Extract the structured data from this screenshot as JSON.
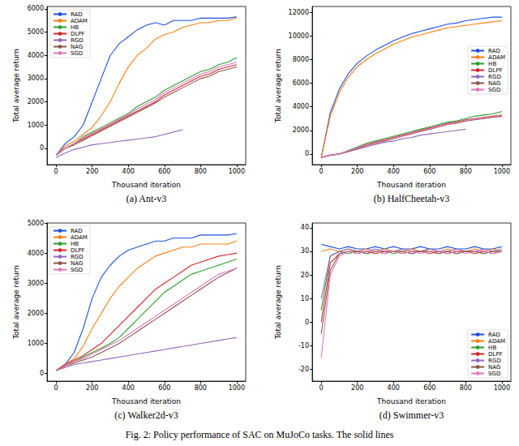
{
  "caption": "Fig. 2: Policy performance of SAC on MuJoCo tasks. The solid lines",
  "chart_data": [
    {
      "type": "line",
      "title": "(a) Ant-v3",
      "x_label": "Thousand iteration",
      "y_label": "Total average return",
      "x": [
        0,
        50,
        100,
        150,
        200,
        250,
        300,
        350,
        400,
        450,
        500,
        550,
        600,
        650,
        700,
        750,
        800,
        850,
        900,
        950,
        1000
      ],
      "xlim": [
        -50,
        1050
      ],
      "xticks": [
        0,
        200,
        400,
        600,
        800,
        1000
      ],
      "ylim": [
        -700,
        6100
      ],
      "yticks": [
        0,
        1000,
        2000,
        3000,
        4000,
        5000,
        6000
      ],
      "grid": false,
      "legend": "upper left",
      "series": [
        {
          "name": "RAD",
          "color": "#1f4fe0",
          "values": [
            -300,
            200,
            500,
            1000,
            2000,
            3000,
            4000,
            4500,
            4800,
            5100,
            5300,
            5400,
            5300,
            5500,
            5500,
            5500,
            5600,
            5600,
            5600,
            5600,
            5650
          ]
        },
        {
          "name": "ADAM",
          "color": "#ff7f0e",
          "values": [
            -300,
            100,
            300,
            600,
            900,
            1400,
            2000,
            2800,
            3500,
            4000,
            4300,
            4700,
            4900,
            5000,
            5200,
            5300,
            5400,
            5400,
            5500,
            5500,
            5600
          ]
        },
        {
          "name": "HB",
          "color": "#2ca02c",
          "values": [
            -300,
            0,
            200,
            500,
            700,
            900,
            1100,
            1300,
            1500,
            1800,
            2000,
            2200,
            2500,
            2700,
            2900,
            3100,
            3300,
            3400,
            3600,
            3700,
            3900
          ]
        },
        {
          "name": "DLPF",
          "color": "#d62728",
          "values": [
            -300,
            0,
            200,
            400,
            600,
            800,
            1000,
            1200,
            1400,
            1600,
            1800,
            2000,
            2300,
            2500,
            2700,
            2900,
            3100,
            3200,
            3400,
            3500,
            3600
          ]
        },
        {
          "name": "RGD",
          "color": "#9467bd",
          "values": [
            -400,
            -200,
            -50,
            50,
            150,
            200,
            250,
            300,
            350,
            400,
            450,
            500,
            600,
            700,
            800,
            null,
            null,
            null,
            null,
            null,
            null
          ]
        },
        {
          "name": "NAG",
          "color": "#8c564b",
          "values": [
            -300,
            0,
            150,
            350,
            550,
            750,
            950,
            1150,
            1350,
            1550,
            1750,
            1950,
            2200,
            2400,
            2600,
            2800,
            3000,
            3100,
            3300,
            3400,
            3500
          ]
        },
        {
          "name": "SGD",
          "color": "#e377c2",
          "values": [
            -300,
            0,
            200,
            450,
            650,
            850,
            1050,
            1250,
            1450,
            1700,
            1900,
            2100,
            2400,
            2600,
            2800,
            3000,
            3200,
            3300,
            3500,
            3600,
            3700
          ]
        }
      ]
    },
    {
      "type": "line",
      "title": "(b) HalfCheetah-v3",
      "x_label": "Thousand iteration",
      "y_label": "Total average return",
      "x": [
        0,
        50,
        100,
        150,
        200,
        250,
        300,
        350,
        400,
        450,
        500,
        550,
        600,
        650,
        700,
        750,
        800,
        850,
        900,
        950,
        1000
      ],
      "xlim": [
        -50,
        1050
      ],
      "xticks": [
        0,
        200,
        400,
        600,
        800,
        1000
      ],
      "ylim": [
        -900,
        12500
      ],
      "yticks": [
        0,
        2000,
        4000,
        6000,
        8000,
        10000,
        12000
      ],
      "grid": false,
      "legend": "right",
      "series": [
        {
          "name": "RAD",
          "color": "#1f4fe0",
          "values": [
            -300,
            3500,
            5500,
            6800,
            7700,
            8300,
            8800,
            9200,
            9600,
            9900,
            10200,
            10400,
            10600,
            10800,
            11000,
            11100,
            11300,
            11400,
            11500,
            11600,
            11600
          ]
        },
        {
          "name": "ADAM",
          "color": "#ff7f0e",
          "values": [
            -300,
            3200,
            5200,
            6500,
            7400,
            8000,
            8500,
            8900,
            9300,
            9600,
            9900,
            10100,
            10300,
            10500,
            10700,
            10800,
            10900,
            11000,
            11100,
            11200,
            11300
          ]
        },
        {
          "name": "HB",
          "color": "#2ca02c",
          "values": [
            -300,
            -100,
            0,
            300,
            600,
            900,
            1100,
            1300,
            1500,
            1700,
            1900,
            2100,
            2300,
            2500,
            2700,
            2800,
            3000,
            3200,
            3300,
            3400,
            3600
          ]
        },
        {
          "name": "DLPF",
          "color": "#d62728",
          "values": [
            -300,
            -100,
            0,
            250,
            500,
            800,
            1000,
            1200,
            1400,
            1600,
            1800,
            2000,
            2200,
            2400,
            2600,
            2700,
            2900,
            3000,
            3100,
            3200,
            3300
          ]
        },
        {
          "name": "RGD",
          "color": "#9467bd",
          "values": [
            -300,
            -100,
            0,
            200,
            400,
            600,
            800,
            1000,
            1100,
            1300,
            1400,
            1600,
            1700,
            1800,
            1900,
            2000,
            2100,
            null,
            null,
            null,
            null
          ]
        },
        {
          "name": "NAG",
          "color": "#8c564b",
          "values": [
            -300,
            -100,
            0,
            200,
            450,
            700,
            900,
            1100,
            1300,
            1500,
            1700,
            1900,
            2100,
            2300,
            2500,
            2600,
            2800,
            2900,
            3000,
            3100,
            3200
          ]
        },
        {
          "name": "SGD",
          "color": "#e377c2",
          "values": [
            -300,
            -100,
            0,
            250,
            500,
            750,
            950,
            1150,
            1350,
            1550,
            1750,
            1950,
            2150,
            2350,
            2550,
            2650,
            2850,
            2950,
            3050,
            3150,
            3300
          ]
        }
      ]
    },
    {
      "type": "line",
      "title": "(c) Walker2d-v3",
      "x_label": "Thousand iteration",
      "y_label": "Total average return",
      "x": [
        0,
        50,
        100,
        150,
        200,
        250,
        300,
        350,
        400,
        450,
        500,
        550,
        600,
        650,
        700,
        750,
        800,
        850,
        900,
        950,
        1000
      ],
      "xlim": [
        -50,
        1050
      ],
      "xticks": [
        0,
        200,
        400,
        600,
        800,
        1000
      ],
      "ylim": [
        -250,
        5000
      ],
      "yticks": [
        0,
        1000,
        2000,
        3000,
        4000,
        5000
      ],
      "grid": false,
      "legend": "upper left",
      "series": [
        {
          "name": "RAD",
          "color": "#1f4fe0",
          "values": [
            100,
            300,
            700,
            1500,
            2500,
            3200,
            3600,
            3900,
            4100,
            4200,
            4300,
            4400,
            4400,
            4500,
            4500,
            4500,
            4600,
            4600,
            4600,
            4600,
            4650
          ]
        },
        {
          "name": "ADAM",
          "color": "#ff7f0e",
          "values": [
            100,
            300,
            500,
            900,
            1500,
            2000,
            2500,
            2900,
            3200,
            3500,
            3700,
            3900,
            4000,
            4100,
            4200,
            4200,
            4300,
            4300,
            4300,
            4300,
            4400
          ]
        },
        {
          "name": "HB",
          "color": "#2ca02c",
          "values": [
            100,
            250,
            400,
            550,
            700,
            850,
            1000,
            1200,
            1500,
            1800,
            2100,
            2400,
            2700,
            2900,
            3100,
            3300,
            3400,
            3500,
            3600,
            3700,
            3800
          ]
        },
        {
          "name": "DLPF",
          "color": "#d62728",
          "values": [
            100,
            300,
            450,
            600,
            800,
            1000,
            1300,
            1600,
            1900,
            2200,
            2500,
            2800,
            3000,
            3200,
            3400,
            3600,
            3700,
            3800,
            3900,
            3950,
            4000
          ]
        },
        {
          "name": "RGD",
          "color": "#9467bd",
          "values": [
            100,
            200,
            300,
            350,
            400,
            450,
            500,
            550,
            600,
            650,
            700,
            750,
            800,
            850,
            900,
            950,
            1000,
            1050,
            1100,
            1150,
            1200
          ]
        },
        {
          "name": "NAG",
          "color": "#8c564b",
          "values": [
            100,
            250,
            350,
            450,
            550,
            700,
            850,
            1000,
            1200,
            1400,
            1600,
            1800,
            2000,
            2200,
            2400,
            2600,
            2800,
            3000,
            3200,
            3350,
            3500
          ]
        },
        {
          "name": "SGD",
          "color": "#e377c2",
          "values": [
            100,
            250,
            400,
            500,
            650,
            800,
            950,
            1100,
            1300,
            1500,
            1700,
            1900,
            2100,
            2300,
            2500,
            2700,
            2900,
            3100,
            3300,
            3400,
            3500
          ]
        }
      ]
    },
    {
      "type": "line",
      "title": "(d) Swimmer-v3",
      "x_label": "Thousand iteration",
      "y_label": "Total average return",
      "x": [
        0,
        50,
        100,
        150,
        200,
        250,
        300,
        350,
        400,
        450,
        500,
        550,
        600,
        650,
        700,
        750,
        800,
        850,
        900,
        950,
        1000
      ],
      "xlim": [
        -50,
        1050
      ],
      "xticks": [
        0,
        200,
        400,
        600,
        800,
        1000
      ],
      "ylim": [
        -25,
        42
      ],
      "yticks": [
        -20,
        -10,
        0,
        10,
        20,
        30,
        40
      ],
      "grid": false,
      "legend": "lower right",
      "series": [
        {
          "name": "RAD",
          "color": "#1f4fe0",
          "values": [
            33,
            32,
            31,
            32,
            31,
            31,
            32,
            31,
            32,
            31,
            31,
            32,
            31,
            31,
            32,
            31,
            31,
            32,
            31,
            31,
            32
          ]
        },
        {
          "name": "ADAM",
          "color": "#ff7f0e",
          "values": [
            30,
            31,
            30,
            31,
            30,
            31,
            30,
            31,
            30,
            30,
            31,
            30,
            31,
            30,
            31,
            30,
            30,
            31,
            30,
            31,
            30
          ]
        },
        {
          "name": "HB",
          "color": "#2ca02c",
          "values": [
            5,
            28,
            30,
            29,
            30,
            29,
            30,
            30,
            29,
            30,
            29,
            30,
            30,
            29,
            30,
            29,
            30,
            30,
            29,
            30,
            30
          ]
        },
        {
          "name": "DLPF",
          "color": "#d62728",
          "values": [
            0,
            25,
            29,
            30,
            29,
            30,
            29,
            30,
            30,
            29,
            30,
            30,
            29,
            30,
            29,
            30,
            30,
            29,
            30,
            29,
            30
          ]
        },
        {
          "name": "RGD",
          "color": "#9467bd",
          "values": [
            10,
            28,
            30,
            31,
            30,
            30,
            31,
            30,
            30,
            31,
            30,
            30,
            31,
            30,
            30,
            31,
            30,
            30,
            31,
            30,
            31
          ]
        },
        {
          "name": "NAG",
          "color": "#8c564b",
          "values": [
            -5,
            22,
            29,
            30,
            30,
            29,
            30,
            29,
            30,
            30,
            29,
            30,
            30,
            29,
            30,
            29,
            30,
            30,
            29,
            30,
            30
          ]
        },
        {
          "name": "SGD",
          "color": "#e377c2",
          "values": [
            -15,
            20,
            28,
            30,
            29,
            30,
            30,
            29,
            30,
            29,
            30,
            29,
            30,
            30,
            29,
            30,
            29,
            30,
            30,
            29,
            30
          ]
        }
      ]
    }
  ]
}
